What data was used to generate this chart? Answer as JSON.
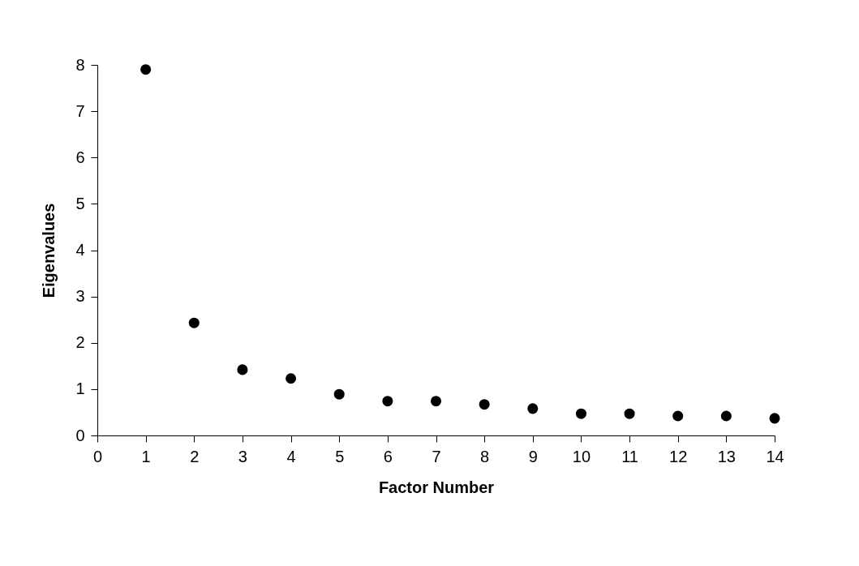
{
  "chart_data": {
    "type": "scatter",
    "xlabel": "Factor Number",
    "ylabel": "Eigenvalues",
    "x": [
      1,
      2,
      3,
      4,
      5,
      6,
      7,
      8,
      9,
      10,
      11,
      12,
      13,
      14
    ],
    "series": [
      {
        "color": "#000000",
        "values": [
          7.9,
          2.43,
          1.42,
          1.23,
          0.89,
          0.74,
          0.74,
          0.67,
          0.58,
          0.47,
          0.47,
          0.42,
          0.42,
          0.37
        ]
      }
    ],
    "xlim": [
      0,
      14
    ],
    "xticks": [
      0,
      1,
      2,
      3,
      4,
      5,
      6,
      7,
      8,
      9,
      10,
      11,
      12,
      13,
      14
    ],
    "ylim": [
      0,
      8
    ],
    "yticks": [
      0,
      1,
      2,
      3,
      4,
      5,
      6,
      7,
      8
    ],
    "marker": "circle",
    "grid": false
  }
}
